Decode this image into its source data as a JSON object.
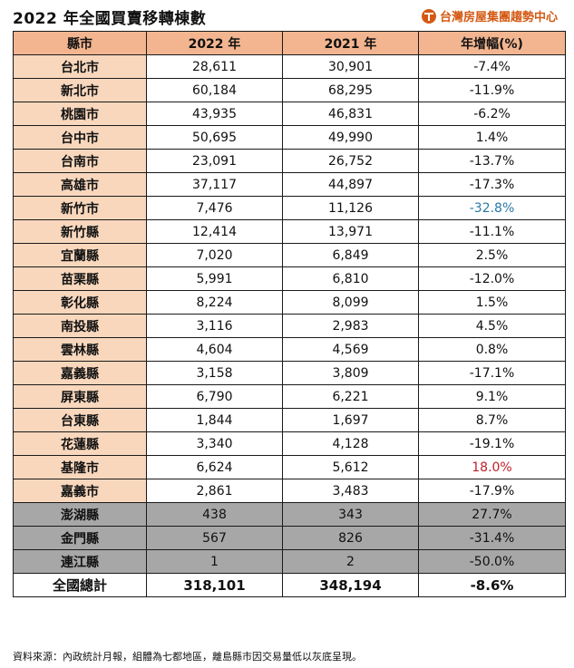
{
  "title": "2022 年全國買賣移轉棟數",
  "brand": {
    "name": "台灣房屋集團趨勢中心",
    "icon": "taiwan-realty-logo-icon",
    "color": "#d45a14"
  },
  "table": {
    "headers": [
      "縣市",
      "2022 年",
      "2021 年",
      "年增幅(%)"
    ],
    "rows": [
      {
        "city": "台北市",
        "y2022": "28,611",
        "y2021": "30,901",
        "change": "-7.4%"
      },
      {
        "city": "新北市",
        "y2022": "60,184",
        "y2021": "68,295",
        "change": "-11.9%"
      },
      {
        "city": "桃園市",
        "y2022": "43,935",
        "y2021": "46,831",
        "change": "-6.2%"
      },
      {
        "city": "台中市",
        "y2022": "50,695",
        "y2021": "49,990",
        "change": "1.4%"
      },
      {
        "city": "台南市",
        "y2022": "23,091",
        "y2021": "26,752",
        "change": "-13.7%"
      },
      {
        "city": "高雄市",
        "y2022": "37,117",
        "y2021": "44,897",
        "change": "-17.3%"
      },
      {
        "city": "新竹市",
        "y2022": "7,476",
        "y2021": "11,126",
        "change": "-32.8%",
        "highlight": "neg"
      },
      {
        "city": "新竹縣",
        "y2022": "12,414",
        "y2021": "13,971",
        "change": "-11.1%"
      },
      {
        "city": "宜蘭縣",
        "y2022": "7,020",
        "y2021": "6,849",
        "change": "2.5%"
      },
      {
        "city": "苗栗縣",
        "y2022": "5,991",
        "y2021": "6,810",
        "change": "-12.0%"
      },
      {
        "city": "彰化縣",
        "y2022": "8,224",
        "y2021": "8,099",
        "change": "1.5%"
      },
      {
        "city": "南投縣",
        "y2022": "3,116",
        "y2021": "2,983",
        "change": "4.5%"
      },
      {
        "city": "雲林縣",
        "y2022": "4,604",
        "y2021": "4,569",
        "change": "0.8%"
      },
      {
        "city": "嘉義縣",
        "y2022": "3,158",
        "y2021": "3,809",
        "change": "-17.1%"
      },
      {
        "city": "屏東縣",
        "y2022": "6,790",
        "y2021": "6,221",
        "change": "9.1%"
      },
      {
        "city": "台東縣",
        "y2022": "1,844",
        "y2021": "1,697",
        "change": "8.7%"
      },
      {
        "city": "花蓮縣",
        "y2022": "3,340",
        "y2021": "4,128",
        "change": "-19.1%"
      },
      {
        "city": "基隆市",
        "y2022": "6,624",
        "y2021": "5,612",
        "change": "18.0%",
        "highlight": "pos"
      },
      {
        "city": "嘉義市",
        "y2022": "2,861",
        "y2021": "3,483",
        "change": "-17.9%"
      },
      {
        "city": "澎湖縣",
        "y2022": "438",
        "y2021": "343",
        "change": "27.7%",
        "gray": true
      },
      {
        "city": "金門縣",
        "y2022": "567",
        "y2021": "826",
        "change": "-31.4%",
        "gray": true
      },
      {
        "city": "連江縣",
        "y2022": "1",
        "y2021": "2",
        "change": "-50.0%",
        "gray": true
      }
    ],
    "total": {
      "city": "全國總計",
      "y2022": "318,101",
      "y2021": "348,194",
      "change": "-8.6%"
    }
  },
  "colors": {
    "header_bg": "#f2b590",
    "city_bg": "#f8d7bd",
    "gray_bg": "#a7a7a7",
    "neg_highlight": "#2a78a8",
    "pos_highlight": "#c0202a"
  },
  "footnote": "資料來源：內政統計月報，組體為七都地區，離島縣市因交易量低以灰底呈現。"
}
